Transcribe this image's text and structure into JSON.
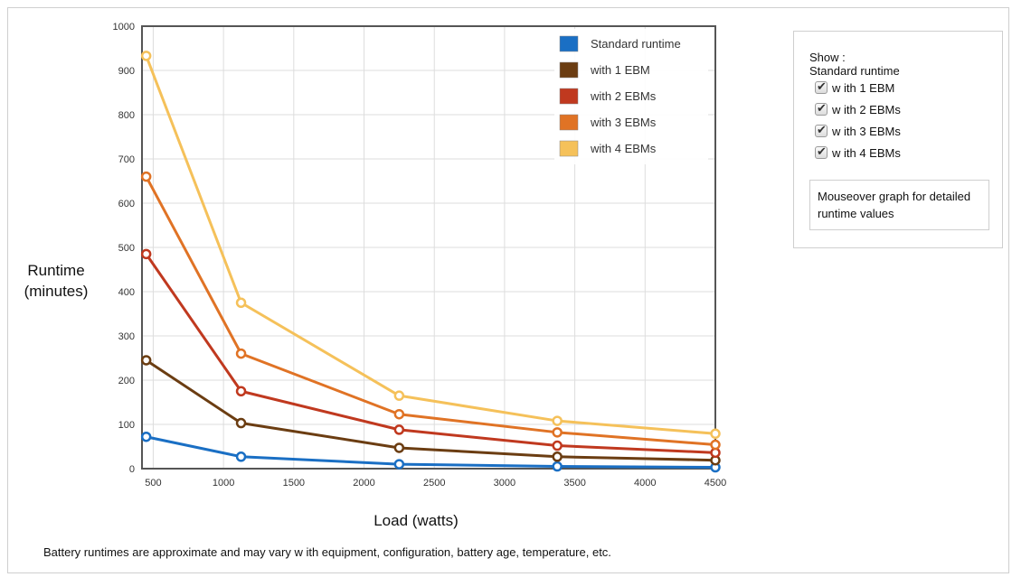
{
  "chart_data": {
    "type": "line",
    "x": [
      450,
      1125,
      2250,
      3375,
      4500
    ],
    "xticks": [
      500,
      1000,
      1500,
      2000,
      2500,
      3000,
      3500,
      4000,
      4500
    ],
    "xlim": [
      420,
      4500
    ],
    "yticks": [
      0,
      100,
      200,
      300,
      400,
      500,
      600,
      700,
      800,
      900,
      1000
    ],
    "ylim": [
      0,
      1000
    ],
    "grid": true,
    "legend": "top-right",
    "xlabel": "Load (watts)",
    "ylabel_lines": [
      "Runtime",
      "(minutes)"
    ],
    "series": [
      {
        "name": "Standard runtime",
        "color": "#1a6fc4",
        "values": [
          72,
          27,
          10,
          5,
          3
        ]
      },
      {
        "name": "with 1 EBM",
        "color": "#6b3d12",
        "values": [
          245,
          103,
          47,
          27,
          19
        ]
      },
      {
        "name": "with 2 EBMs",
        "color": "#c0391f",
        "values": [
          485,
          175,
          88,
          52,
          36
        ]
      },
      {
        "name": "with 3 EBMs",
        "color": "#e07325",
        "values": [
          660,
          260,
          123,
          82,
          54
        ]
      },
      {
        "name": "with 4 EBMs",
        "color": "#f5c15a",
        "values": [
          933,
          375,
          165,
          108,
          79
        ]
      }
    ]
  },
  "panel": {
    "title": "Show :",
    "standard_label": "Standard runtime",
    "options": [
      "w ith 1 EBM",
      "w ith 2 EBMs",
      "w ith 3 EBMs",
      "w ith 4 EBMs"
    ],
    "hint": "Mouseover graph for detailed runtime values"
  },
  "note": "Battery runtimes are approximate and may vary w ith equipment, configuration, battery age, temperature, etc."
}
